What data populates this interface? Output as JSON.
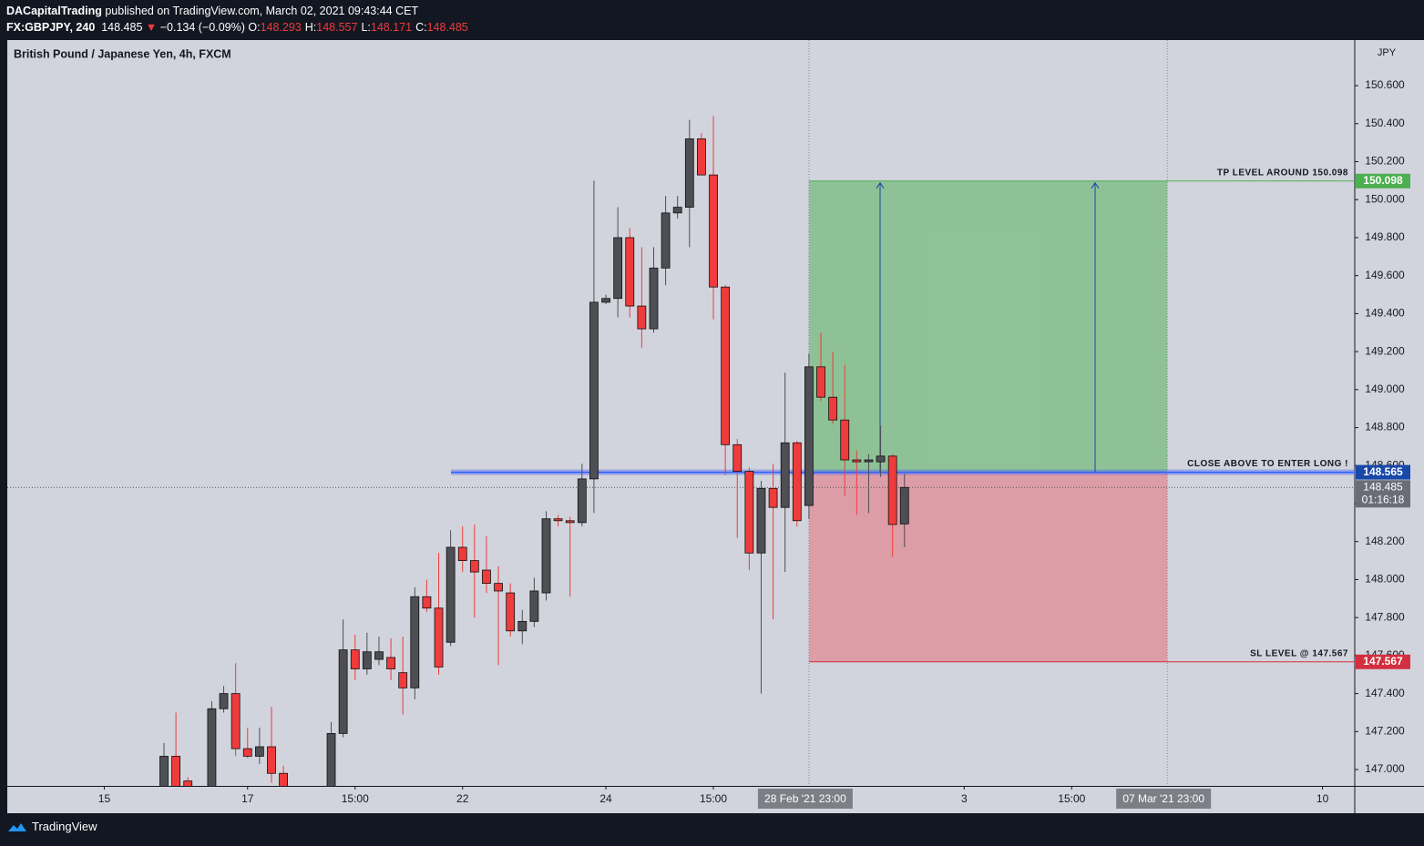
{
  "header": {
    "author": "DACapitalTrading",
    "published": "published on TradingView.com, March 02, 2021 09:43:44 CET",
    "symbol": "FX:GBPJPY, 240",
    "last": 148.485,
    "change": "−0.134 (−0.09%)",
    "ohlc": [
      {
        "label": "O:",
        "value": 148.293
      },
      {
        "label": "H:",
        "value": 148.557
      },
      {
        "label": "L:",
        "value": 148.171
      },
      {
        "label": "C:",
        "value": 148.485
      }
    ]
  },
  "footer": {
    "brand": "TradingView"
  },
  "chart_data": {
    "type": "candlestick",
    "title": "British Pound / Japanese Yen, 4h, FXCM",
    "currency": "JPY",
    "up_color": "#4e4e55",
    "down_color": "#ef3b3b",
    "x": [
      0,
      1,
      2,
      4,
      5,
      6,
      7,
      8,
      9,
      10,
      14,
      15,
      16,
      17,
      18,
      19,
      20,
      21,
      22,
      23,
      24,
      25,
      26,
      27,
      28,
      29,
      30,
      31,
      32,
      33,
      34,
      35,
      36,
      37,
      38,
      39,
      40,
      41,
      42,
      43,
      44,
      45,
      46,
      47,
      48,
      49,
      50,
      51,
      52,
      53,
      54,
      55,
      56,
      57,
      58,
      59,
      60,
      61,
      62
    ],
    "open": [
      146.85,
      147.07,
      146.94,
      146.85,
      147.32,
      147.4,
      147.11,
      147.07,
      147.12,
      146.98,
      146.85,
      147.19,
      147.63,
      147.53,
      147.58,
      147.59,
      147.51,
      147.43,
      147.91,
      147.85,
      147.67,
      148.17,
      148.1,
      148.05,
      147.98,
      147.93,
      147.73,
      147.78,
      147.93,
      148.32,
      148.31,
      148.3,
      148.53,
      149.46,
      149.48,
      149.8,
      149.44,
      149.32,
      149.64,
      149.93,
      149.96,
      150.32,
      150.13,
      149.54,
      148.71,
      148.57,
      148.14,
      148.48,
      148.38,
      148.72,
      148.39,
      149.12,
      148.96,
      148.84,
      148.63,
      148.62,
      148.62,
      148.65,
      148.293
    ],
    "high": [
      147.14,
      147.3,
      146.96,
      147.36,
      147.44,
      147.56,
      147.22,
      147.22,
      147.33,
      147.02,
      147.25,
      147.79,
      147.71,
      147.72,
      147.7,
      147.69,
      147.7,
      147.96,
      148.0,
      148.14,
      148.26,
      148.28,
      148.29,
      148.23,
      148.07,
      147.98,
      147.84,
      148.01,
      148.36,
      148.34,
      148.33,
      148.61,
      150.1,
      149.5,
      149.96,
      149.85,
      149.75,
      149.75,
      150.02,
      150.02,
      150.42,
      150.35,
      150.44,
      149.55,
      148.74,
      148.59,
      148.52,
      148.61,
      149.09,
      148.73,
      149.19,
      149.3,
      149.2,
      149.13,
      148.68,
      148.66,
      148.81,
      148.66,
      148.557
    ],
    "low": [
      146.8,
      146.8,
      146.8,
      146.8,
      147.3,
      147.07,
      147.06,
      147.03,
      146.93,
      146.8,
      146.8,
      147.17,
      147.47,
      147.5,
      147.55,
      147.47,
      147.29,
      147.37,
      147.83,
      147.5,
      147.65,
      148.04,
      147.8,
      147.93,
      147.55,
      147.7,
      147.66,
      147.75,
      147.89,
      148.28,
      147.91,
      148.28,
      148.35,
      149.45,
      149.38,
      149.38,
      149.22,
      149.3,
      149.55,
      149.9,
      149.75,
      150.13,
      149.37,
      148.55,
      148.22,
      148.05,
      147.4,
      147.79,
      148.04,
      148.28,
      148.32,
      148.94,
      148.82,
      148.44,
      148.34,
      148.35,
      148.54,
      148.12,
      148.171
    ],
    "close": [
      147.07,
      146.85,
      146.85,
      147.32,
      147.4,
      147.11,
      147.07,
      147.12,
      146.98,
      146.85,
      147.19,
      147.63,
      147.53,
      147.62,
      147.62,
      147.53,
      147.43,
      147.91,
      147.85,
      147.54,
      148.17,
      148.1,
      148.04,
      147.98,
      147.94,
      147.73,
      147.78,
      147.94,
      148.32,
      148.31,
      148.3,
      148.53,
      149.46,
      149.48,
      149.8,
      149.44,
      149.32,
      149.64,
      149.93,
      149.96,
      150.32,
      150.13,
      149.54,
      148.71,
      148.57,
      148.14,
      148.48,
      148.38,
      148.72,
      148.31,
      149.12,
      148.96,
      148.84,
      148.63,
      148.62,
      148.63,
      148.65,
      148.29,
      148.485
    ],
    "xlim": [
      -13.12,
      99.7
    ],
    "xticks": [
      {
        "value": -5,
        "label": "15"
      },
      {
        "value": 7,
        "label": "17"
      },
      {
        "value": 16,
        "label": "15:00"
      },
      {
        "value": 25,
        "label": "22"
      },
      {
        "value": 37,
        "label": "24"
      },
      {
        "value": 46,
        "label": "15:00"
      },
      {
        "value": 67,
        "label": "3"
      },
      {
        "value": 76,
        "label": "15:00"
      },
      {
        "value": 97,
        "label": "10"
      }
    ],
    "time_markers": [
      {
        "value": 54,
        "label": "28 Feb '21 23:00"
      },
      {
        "value": 84,
        "label": "07 Mar '21 23:00"
      }
    ],
    "ylim": [
      146.914,
      150.84
    ],
    "yticks": [
      {
        "value": 147,
        "label": "147.000"
      },
      {
        "value": 147.2,
        "label": "147.200"
      },
      {
        "value": 147.4,
        "label": "147.400"
      },
      {
        "value": 147.6,
        "label": "147.600"
      },
      {
        "value": 147.8,
        "label": "147.800"
      },
      {
        "value": 148,
        "label": "148.000"
      },
      {
        "value": 148.2,
        "label": "148.200"
      },
      {
        "value": 148.4,
        "label": "148.400"
      },
      {
        "value": 148.6,
        "label": "148.600"
      },
      {
        "value": 148.8,
        "label": "148.800"
      },
      {
        "value": 149,
        "label": "149.000"
      },
      {
        "value": 149.2,
        "label": "149.200"
      },
      {
        "value": 149.4,
        "label": "149.400"
      },
      {
        "value": 149.6,
        "label": "149.600"
      },
      {
        "value": 149.8,
        "label": "149.800"
      },
      {
        "value": 150,
        "label": "150.000"
      },
      {
        "value": 150.2,
        "label": "150.200"
      },
      {
        "value": 150.4,
        "label": "150.400"
      },
      {
        "value": 150.6,
        "label": "150.600"
      }
    ],
    "grid": false,
    "take_profit": {
      "value": 150.098,
      "label": "TP LEVEL AROUND 150.098",
      "color": "#4caf50"
    },
    "entry": {
      "value": 148.565,
      "label": "CLOSE ABOVE TO ENTER LONG !",
      "color": "#1848a8"
    },
    "stop_loss": {
      "value": 147.567,
      "label": "SL LEVEL @ 147.567",
      "color": "#d32f3f"
    },
    "last_price": {
      "value": 148.485,
      "countdown": "01:16:18",
      "color": "#6a6d78"
    }
  }
}
